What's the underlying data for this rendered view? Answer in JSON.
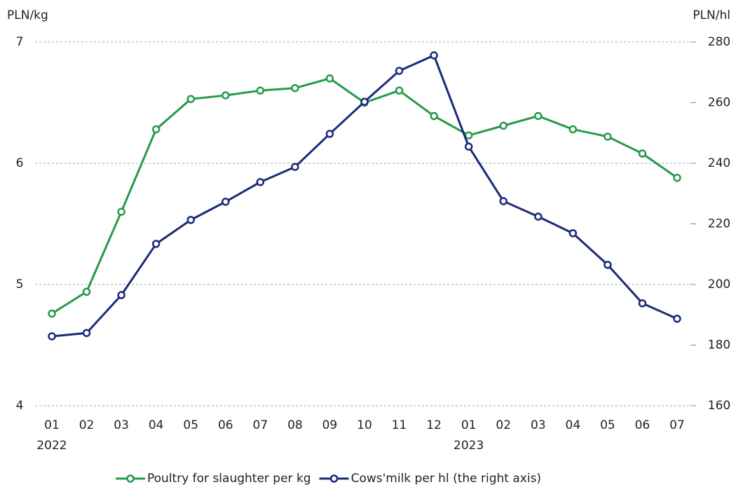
{
  "chart_data": {
    "type": "line",
    "y_label": "PLN/kg",
    "y2_label": "PLN/hl",
    "categories": [
      "01",
      "02",
      "03",
      "04",
      "05",
      "06",
      "07",
      "08",
      "09",
      "10",
      "11",
      "12",
      "01",
      "02",
      "03",
      "04",
      "05",
      "06",
      "07"
    ],
    "year_labels": [
      "2022",
      null,
      null,
      null,
      null,
      null,
      null,
      null,
      null,
      null,
      null,
      null,
      "2023",
      null,
      null,
      null,
      null,
      null,
      null
    ],
    "series": [
      {
        "name": "Poultry for slaughter per kg",
        "color": "#259a4a",
        "values": [
          4.76,
          4.94,
          5.6,
          6.28,
          6.53,
          6.56,
          6.6,
          6.62,
          6.7,
          6.5,
          6.6,
          6.39,
          6.23,
          6.31,
          6.39,
          6.28,
          6.22,
          6.08,
          5.88
        ]
      },
      {
        "name": "Cows'milk per hl (the right axis)",
        "color": "#1b2a78",
        "axis": "y2",
        "values": [
          182.9,
          184.0,
          196.5,
          213.4,
          221.3,
          227.3,
          233.8,
          238.8,
          249.7,
          260.3,
          270.5,
          275.6,
          245.5,
          227.5,
          222.4,
          216.9,
          206.5,
          193.8,
          188.7
        ]
      }
    ],
    "ylim": [
      4,
      7
    ],
    "yticks": [
      4,
      5,
      6,
      7
    ],
    "y2lim": [
      160,
      280
    ],
    "y2ticks": [
      160,
      180,
      200,
      220,
      240,
      260,
      280
    ],
    "grid": true,
    "legend": "bottom"
  }
}
